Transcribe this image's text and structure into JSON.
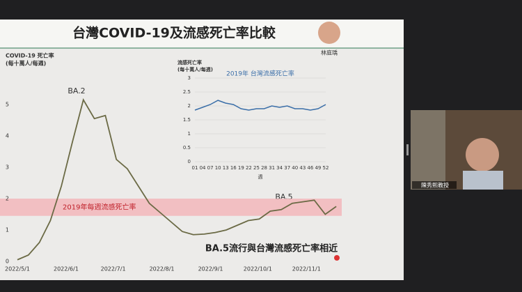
{
  "slide": {
    "title": "台灣COVID-19及流感死亡率比較",
    "presenter": "林庭瑀",
    "annotations": [
      "BA.2",
      "BA.5",
      "BA.5流行與台灣流感死亡率相近"
    ]
  },
  "participant": {
    "name": "陳秀熙教授"
  },
  "chart_data": [
    {
      "type": "line",
      "title": "COVID-19 死亡率",
      "subtitle": "(每十萬人/每週)",
      "color": "#6b6a45",
      "x": [
        0,
        1,
        2,
        3,
        4,
        5,
        6,
        7,
        8,
        9,
        10,
        11,
        12,
        13,
        14,
        15,
        16,
        17,
        18,
        19,
        20,
        21,
        22,
        23,
        24,
        25,
        26,
        27,
        28,
        29
      ],
      "values": [
        0.05,
        0.2,
        0.6,
        1.3,
        2.4,
        3.8,
        5.15,
        4.55,
        4.65,
        3.25,
        2.95,
        2.4,
        1.85,
        1.55,
        1.25,
        0.95,
        0.85,
        0.87,
        0.92,
        1.0,
        1.15,
        1.3,
        1.35,
        1.6,
        1.65,
        1.85,
        1.9,
        1.95,
        1.5,
        1.75
      ],
      "xlim": [
        0,
        29.5
      ],
      "xticks": [
        {
          "value": 0,
          "label": "2022/5/1"
        },
        {
          "value": 4.43,
          "label": "2022/6/1"
        },
        {
          "value": 8.71,
          "label": "2022/7/1"
        },
        {
          "value": 13.14,
          "label": "2022/8/1"
        },
        {
          "value": 17.57,
          "label": "2022/9/1"
        },
        {
          "value": 21.86,
          "label": "2022/10/1"
        },
        {
          "value": 26.29,
          "label": "2022/11/1"
        }
      ],
      "ylim": [
        0,
        5.5
      ],
      "yticks": [
        0,
        1,
        2,
        3,
        4,
        5
      ],
      "band": {
        "label": "2019年每週流感死亡率",
        "range": [
          1.45,
          2.0
        ],
        "color": "#f4b4b8"
      }
    },
    {
      "type": "line",
      "title": "流感死亡率",
      "subtitle": "(每十萬人/每週)",
      "xlabel": "週",
      "color": "#3a6ea8",
      "series": [
        {
          "name": "2019年 台灣流感死亡率",
          "color": "#3a6ea8",
          "values": [
            1.85,
            1.95,
            2.05,
            2.2,
            2.1,
            2.05,
            1.9,
            1.85,
            1.9,
            1.9,
            2.0,
            1.95,
            2.0,
            1.9,
            1.9,
            1.85,
            1.9,
            2.05
          ]
        }
      ],
      "x": [
        1,
        4,
        7,
        10,
        13,
        16,
        19,
        22,
        25,
        28,
        31,
        34,
        37,
        40,
        43,
        46,
        49,
        52
      ],
      "xlim": [
        1,
        52
      ],
      "xticks": [
        {
          "value": 1,
          "label": "01"
        },
        {
          "value": 4,
          "label": "04"
        },
        {
          "value": 7,
          "label": "07"
        },
        10,
        13,
        16,
        19,
        22,
        25,
        28,
        31,
        34,
        37,
        40,
        43,
        46,
        49,
        52
      ],
      "ylim": [
        0,
        3
      ],
      "yticks": [
        0,
        0.5,
        1,
        1.5,
        2,
        2.5,
        3
      ],
      "grid": true
    }
  ]
}
